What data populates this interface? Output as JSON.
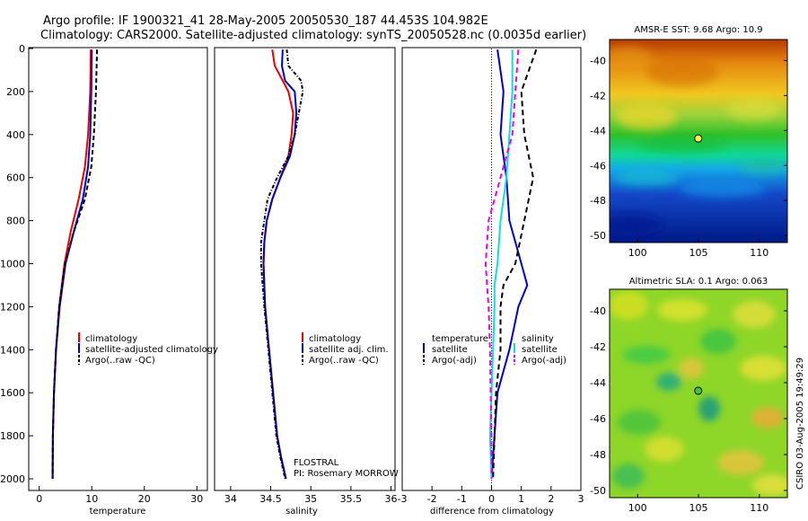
{
  "header": {
    "title_line1": "Argo profile: IF 1900321_41 28-May-2005 20050530_187 44.453S 104.982E",
    "title_line2": "Climatology: CARS2000. Satellite-adjusted climatology: synTS_20050528.nc (0.0035d earlier)"
  },
  "footer": {
    "stamp": "CSIRO 03-Aug-2005 19:49:29"
  },
  "colors": {
    "red": "#ee0000",
    "blue": "#0000cc",
    "black": "#000000",
    "cyan": "#11dddd",
    "magenta": "#ee00ee",
    "dot": "#ffff33"
  },
  "chart_data": [
    {
      "type": "line",
      "id": "temperature",
      "xlabel": "temperature",
      "ylabel": "",
      "xlim": [
        -2,
        32
      ],
      "ylim": [
        0,
        2050
      ],
      "xticks": [
        0,
        10,
        20,
        30
      ],
      "yticks": [
        0,
        200,
        400,
        600,
        800,
        1000,
        1200,
        1400,
        1600,
        1800,
        2000
      ],
      "legend_labels": [
        "climatology",
        "satellite-adjusted climatology",
        "Argo(..raw -QC)"
      ],
      "series": [
        {
          "name": "climatology",
          "color": "red",
          "dash": "",
          "x": [
            9.8,
            9.7,
            9.3,
            8.7,
            7.5,
            6.0,
            4.8,
            3.8,
            3.2,
            2.8,
            2.6,
            2.55
          ],
          "y": [
            5,
            200,
            400,
            550,
            700,
            850,
            1000,
            1200,
            1400,
            1600,
            1800,
            2000
          ]
        },
        {
          "name": "satellite-adjusted climatology",
          "color": "blue",
          "dash": "",
          "x": [
            10.0,
            9.9,
            9.7,
            9.3,
            8.3,
            6.6,
            5.0,
            3.9,
            3.2,
            2.8,
            2.6,
            2.55
          ],
          "y": [
            5,
            200,
            400,
            550,
            700,
            850,
            1000,
            1200,
            1400,
            1600,
            1800,
            2000
          ]
        },
        {
          "name": "Argo(..raw -QC)",
          "color": "black",
          "dash": "5,3",
          "x": [
            11.0,
            10.8,
            10.4,
            9.9,
            8.7,
            6.6,
            4.9,
            3.8,
            3.2,
            2.8,
            2.6,
            2.55
          ],
          "y": [
            5,
            200,
            400,
            550,
            700,
            850,
            1000,
            1200,
            1400,
            1600,
            1800,
            2000
          ]
        }
      ]
    },
    {
      "type": "line",
      "id": "salinity",
      "xlabel": "salinity",
      "ylabel": "",
      "xlim": [
        33.8,
        36.05
      ],
      "ylim": [
        0,
        2050
      ],
      "xticks": [
        34,
        34.5,
        35,
        35.5,
        36
      ],
      "yticks": [
        0,
        200,
        400,
        600,
        800,
        1000,
        1200,
        1400,
        1600,
        1800,
        2000
      ],
      "legend_labels": [
        "climatology",
        "satellite adj. clim.",
        "Argo(..raw -QC)"
      ],
      "footnote1": "FLOSTRAL",
      "footnote2": "PI: Rosemary MORROW",
      "series": [
        {
          "name": "climatology",
          "color": "red",
          "dash": "",
          "x": [
            34.52,
            34.55,
            34.65,
            34.72,
            34.78,
            34.76,
            34.72,
            34.62,
            34.52,
            34.45,
            34.42,
            34.41,
            34.43,
            34.48,
            34.53,
            34.58,
            34.63,
            34.69
          ],
          "y": [
            5,
            80,
            150,
            200,
            300,
            400,
            500,
            600,
            700,
            800,
            900,
            1000,
            1200,
            1400,
            1600,
            1800,
            1900,
            2000
          ]
        },
        {
          "name": "satellite adj. clim.",
          "color": "blue",
          "dash": "",
          "x": [
            34.65,
            34.64,
            34.68,
            34.8,
            34.82,
            34.8,
            34.74,
            34.62,
            34.52,
            34.45,
            34.42,
            34.41,
            34.43,
            34.48,
            34.53,
            34.58,
            34.63,
            34.69
          ],
          "y": [
            5,
            80,
            150,
            200,
            300,
            400,
            500,
            600,
            700,
            800,
            900,
            1000,
            1200,
            1400,
            1600,
            1800,
            1900,
            2000
          ]
        },
        {
          "name": "Argo(..raw -QC)",
          "color": "black",
          "dash": "4,2,1,2",
          "x": [
            34.7,
            34.72,
            34.88,
            34.9,
            34.85,
            34.8,
            34.72,
            34.58,
            34.46,
            34.42,
            34.38,
            34.38,
            34.42,
            34.47,
            34.52,
            34.57,
            34.62,
            34.68
          ],
          "y": [
            5,
            80,
            150,
            200,
            300,
            400,
            500,
            600,
            700,
            800,
            900,
            1000,
            1200,
            1400,
            1600,
            1800,
            1900,
            2000
          ]
        }
      ]
    },
    {
      "type": "line",
      "id": "difference",
      "xlabel": "difference from climatology",
      "ylabel": "",
      "xlim": [
        -3,
        3
      ],
      "ylim": [
        0,
        2050
      ],
      "xticks": [
        -3,
        -2,
        -1,
        0,
        1,
        2,
        3
      ],
      "yticks": [
        0,
        200,
        400,
        600,
        800,
        1000,
        1200,
        1400,
        1600,
        1800,
        2000
      ],
      "legend_col1_heading": "temperature",
      "legend_col1_labels": [
        "satellite",
        "Argo(-adj)"
      ],
      "legend_col2_heading": "salinity",
      "legend_col2_labels": [
        "satellite",
        "Argo(-adj)"
      ],
      "series": [
        {
          "name": "temperature satellite",
          "color": "blue",
          "dash": "",
          "x": [
            0.2,
            0.4,
            0.3,
            0.5,
            0.6,
            1.0,
            1.2,
            0.9,
            0.6,
            0.2,
            0.1,
            0.0
          ],
          "y": [
            5,
            200,
            400,
            600,
            800,
            1000,
            1100,
            1200,
            1400,
            1600,
            1800,
            2000
          ]
        },
        {
          "name": "temperature Argo(-adj)",
          "color": "black",
          "dash": "6,4",
          "x": [
            1.5,
            1.0,
            1.1,
            1.4,
            1.1,
            0.8,
            0.4,
            0.3,
            0.3,
            0.15,
            0.1,
            0.05
          ],
          "y": [
            5,
            200,
            400,
            600,
            800,
            1000,
            1100,
            1200,
            1400,
            1600,
            1800,
            2000
          ]
        },
        {
          "name": "salinity satellite",
          "color": "cyan",
          "dash": "",
          "x": [
            0.7,
            0.7,
            0.6,
            0.5,
            0.3,
            0.2,
            0.1,
            0.1,
            0.05,
            0.0,
            -0.05,
            0.0
          ],
          "y": [
            5,
            200,
            400,
            600,
            800,
            1000,
            1100,
            1200,
            1400,
            1600,
            1800,
            2000
          ]
        },
        {
          "name": "salinity Argo(-adj)",
          "color": "magenta",
          "dash": "6,4",
          "x": [
            0.9,
            0.8,
            0.7,
            0.3,
            -0.1,
            -0.2,
            -0.15,
            -0.1,
            -0.05,
            -0.03,
            0.0,
            0.0
          ],
          "y": [
            5,
            200,
            400,
            600,
            800,
            1000,
            1100,
            1200,
            1400,
            1600,
            1800,
            2000
          ]
        }
      ]
    },
    {
      "type": "heatmap",
      "id": "sst_map",
      "title": "AMSR-E SST: 9.68 Argo: 10.9",
      "xlim": [
        97.7,
        112.3
      ],
      "ylim": [
        -50.4,
        -38.8
      ],
      "xticks": [
        100,
        105,
        110
      ],
      "yticks": [
        -40,
        -42,
        -44,
        -46,
        -48,
        -50
      ],
      "float_position": {
        "lon": 104.982,
        "lat": -44.453
      }
    },
    {
      "type": "heatmap",
      "id": "sla_map",
      "title": "Altimetric SLA: 0.1 Argo: 0.063",
      "xlim": [
        97.7,
        112.3
      ],
      "ylim": [
        -50.4,
        -38.8
      ],
      "xticks": [
        100,
        105,
        110
      ],
      "yticks": [
        -40,
        -42,
        -44,
        -46,
        -48,
        -50
      ],
      "float_position": {
        "lon": 104.982,
        "lat": -44.453
      }
    }
  ]
}
